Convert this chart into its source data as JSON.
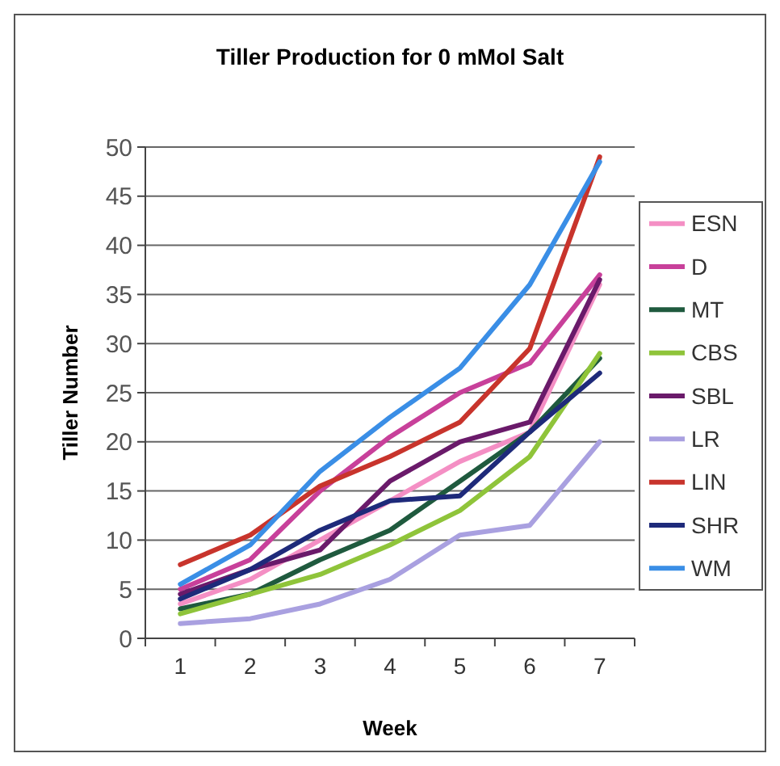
{
  "chart_data": {
    "type": "line",
    "title": "Tiller Production for 0 mMol Salt",
    "xlabel": "Week",
    "ylabel": "Tiller Number",
    "categories": [
      "1",
      "2",
      "3",
      "4",
      "5",
      "6",
      "7"
    ],
    "ylim": [
      0,
      50
    ],
    "yticks": [
      0,
      5,
      10,
      15,
      20,
      25,
      30,
      35,
      40,
      45,
      50
    ],
    "grid": "y",
    "legend": "right",
    "marker": "none",
    "line_style": "solid",
    "series": [
      {
        "name": "ESN",
        "color": "#f48fc4",
        "values": [
          3.5,
          6,
          10,
          14,
          18,
          21,
          36
        ]
      },
      {
        "name": "D",
        "color": "#c8409a",
        "values": [
          5,
          8,
          15,
          20.5,
          25,
          28,
          37
        ]
      },
      {
        "name": "MT",
        "color": "#1f5a3e",
        "values": [
          3,
          4.5,
          8,
          11,
          16,
          21,
          28.5
        ]
      },
      {
        "name": "CBS",
        "color": "#8fc43a",
        "values": [
          2.5,
          4.5,
          6.5,
          9.5,
          13,
          18.5,
          29
        ]
      },
      {
        "name": "SBL",
        "color": "#6a1a6a",
        "values": [
          4.5,
          7,
          9,
          16,
          20,
          22,
          36.5
        ]
      },
      {
        "name": "LR",
        "color": "#a9a0e0",
        "values": [
          1.5,
          2,
          3.5,
          6,
          10.5,
          11.5,
          20
        ]
      },
      {
        "name": "LIN",
        "color": "#c8342c",
        "values": [
          7.5,
          10.5,
          15.5,
          18.5,
          22,
          29.5,
          49
        ]
      },
      {
        "name": "SHR",
        "color": "#1e2a7a",
        "values": [
          4,
          7,
          11,
          14,
          14.5,
          21,
          27
        ]
      },
      {
        "name": "WM",
        "color": "#3a8ee6",
        "values": [
          5.5,
          9.5,
          17,
          22.5,
          27.5,
          36,
          48.5
        ]
      }
    ]
  }
}
